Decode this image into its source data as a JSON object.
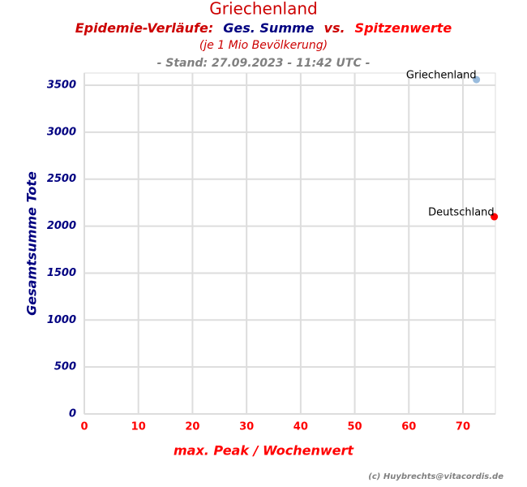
{
  "chart_data": {
    "type": "scatter",
    "title": "Griechenland",
    "subtitle_parts": [
      {
        "text": "Epidemie-Verläufe:",
        "color": "#cc0000"
      },
      {
        "text": "Ges. Summe",
        "color": "#000080"
      },
      {
        "text": "vs.",
        "color": "#cc0000"
      },
      {
        "text": "Spitzenwerte",
        "color": "#ff0000"
      }
    ],
    "note": "(je 1 Mio Bevölkerung)",
    "stand": "- Stand: 27.09.2023 - 11:42 UTC -",
    "credit": "(c) Huybrechts@vitacordis.de",
    "x_label": "max. Peak / Wochenwert",
    "y_label": "Gesamtsumme Tote",
    "series": [
      {
        "name": "Griechenland",
        "color": "#99bbdd",
        "x": [
          72.5
        ],
        "values": [
          3560
        ]
      },
      {
        "name": "Deutschland",
        "color": "#ff0000",
        "x": [
          75.8
        ],
        "values": [
          2100
        ]
      }
    ],
    "xlim": [
      0,
      76
    ],
    "xticks": [
      0,
      10,
      20,
      30,
      40,
      50,
      60,
      70
    ],
    "ylim": [
      0,
      3630
    ],
    "yticks": [
      0,
      500,
      1000,
      1500,
      2000,
      2500,
      3000,
      3500
    ],
    "grid": true
  }
}
